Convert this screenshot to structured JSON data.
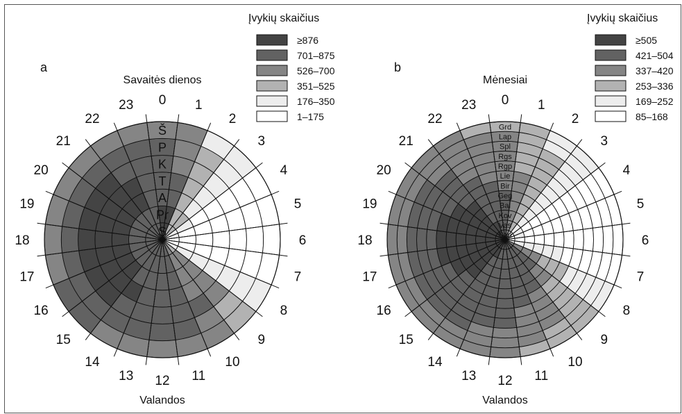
{
  "chart_data": [
    {
      "type": "heatmap",
      "panel_letter": "a",
      "title": "Savaitės dienos",
      "xlabel": "Valandos",
      "hour_labels": [
        "0",
        "1",
        "2",
        "3",
        "4",
        "5",
        "6",
        "7",
        "8",
        "9",
        "10",
        "11",
        "12",
        "13",
        "14",
        "15",
        "16",
        "17",
        "18",
        "19",
        "20",
        "21",
        "22",
        "23"
      ],
      "ring_labels": [
        "Š",
        "P",
        "K",
        "T",
        "A",
        "Pr",
        "S"
      ],
      "legend": {
        "title": "Įvykių skaičius",
        "entries": [
          "≥876",
          "701–875",
          "526–700",
          "351–525",
          "176–350",
          "1–175"
        ],
        "colors": [
          "#444444",
          "#626262",
          "#858585",
          "#b2b2b2",
          "#ededed",
          "#ffffff"
        ]
      },
      "levels": [
        [
          0,
          0,
          3,
          3,
          4,
          4,
          5,
          5,
          4,
          3,
          2,
          1,
          1,
          1,
          1,
          1,
          1,
          1,
          1,
          1,
          1,
          1,
          1,
          1
        ],
        [
          0,
          0,
          3,
          3,
          4,
          5,
          5,
          5,
          4,
          2,
          2,
          1,
          1,
          1,
          1,
          1,
          1,
          1,
          1,
          1,
          1,
          1,
          1,
          1
        ],
        [
          1,
          1,
          3,
          4,
          5,
          5,
          5,
          5,
          4,
          2,
          2,
          1,
          1,
          1,
          1,
          0,
          0,
          0,
          0,
          0,
          0,
          0,
          0,
          1
        ],
        [
          1,
          1,
          3,
          4,
          5,
          5,
          5,
          5,
          4,
          2,
          2,
          1,
          1,
          1,
          0,
          0,
          0,
          0,
          0,
          0,
          0,
          0,
          0,
          1
        ],
        [
          1,
          2,
          3,
          4,
          5,
          5,
          5,
          5,
          4,
          2,
          1,
          1,
          1,
          1,
          1,
          0,
          0,
          0,
          0,
          0,
          0,
          0,
          1,
          1
        ],
        [
          1,
          2,
          3,
          4,
          5,
          5,
          5,
          5,
          4,
          3,
          2,
          1,
          1,
          1,
          1,
          1,
          1,
          1,
          1,
          1,
          1,
          1,
          1,
          1
        ],
        [
          2,
          2,
          4,
          4,
          5,
          5,
          5,
          5,
          4,
          3,
          2,
          2,
          2,
          2,
          2,
          1,
          1,
          2,
          2,
          2,
          2,
          2,
          2,
          2
        ]
      ]
    },
    {
      "type": "heatmap",
      "panel_letter": "b",
      "title": "Mėnesiai",
      "xlabel": "Valandos",
      "hour_labels": [
        "0",
        "1",
        "2",
        "3",
        "4",
        "5",
        "6",
        "7",
        "8",
        "9",
        "10",
        "11",
        "12",
        "13",
        "14",
        "15",
        "16",
        "17",
        "18",
        "19",
        "20",
        "21",
        "22",
        "23"
      ],
      "ring_labels": [
        "Grd",
        "Lap",
        "Spl",
        "Rgs",
        "Rgp",
        "Lie",
        "Bir",
        "Geg",
        "Bal",
        "Kov",
        "Vas",
        "Sau"
      ],
      "legend": {
        "title": "Įvykių skaičius",
        "entries": [
          "≥505",
          "421–504",
          "337–420",
          "253–336",
          "169–252",
          "85–168"
        ],
        "colors": [
          "#444444",
          "#626262",
          "#858585",
          "#b2b2b2",
          "#ededed",
          "#ffffff"
        ]
      },
      "levels": [
        [
          1,
          2,
          3,
          4,
          4,
          4,
          5,
          4,
          2,
          1,
          1,
          1,
          1,
          1,
          0,
          0,
          0,
          0,
          0,
          0,
          0,
          0,
          0,
          1
        ],
        [
          1,
          2,
          3,
          4,
          4,
          4,
          5,
          4,
          2,
          1,
          1,
          1,
          1,
          1,
          0,
          0,
          0,
          0,
          0,
          0,
          0,
          0,
          0,
          1
        ],
        [
          1,
          2,
          3,
          4,
          5,
          5,
          5,
          4,
          2,
          1,
          1,
          1,
          1,
          1,
          1,
          0,
          0,
          0,
          0,
          0,
          0,
          0,
          1,
          1
        ],
        [
          1,
          2,
          3,
          4,
          5,
          5,
          5,
          4,
          2,
          1,
          1,
          1,
          1,
          1,
          1,
          0,
          0,
          0,
          0,
          0,
          0,
          0,
          1,
          1
        ],
        [
          1,
          2,
          3,
          4,
          5,
          5,
          5,
          4,
          3,
          2,
          1,
          1,
          1,
          1,
          1,
          0,
          0,
          0,
          0,
          0,
          0,
          0,
          1,
          1
        ],
        [
          2,
          2,
          3,
          4,
          5,
          5,
          5,
          4,
          3,
          2,
          1,
          1,
          1,
          1,
          1,
          1,
          0,
          0,
          0,
          0,
          0,
          1,
          1,
          1
        ],
        [
          2,
          2,
          3,
          4,
          5,
          5,
          5,
          5,
          3,
          3,
          2,
          1,
          1,
          1,
          1,
          1,
          1,
          0,
          0,
          0,
          1,
          1,
          1,
          2
        ],
        [
          2,
          3,
          3,
          4,
          5,
          5,
          5,
          5,
          4,
          3,
          2,
          2,
          1,
          1,
          1,
          1,
          1,
          1,
          1,
          1,
          1,
          1,
          2,
          2
        ],
        [
          2,
          3,
          3,
          4,
          5,
          5,
          5,
          5,
          4,
          3,
          2,
          2,
          1,
          1,
          1,
          1,
          1,
          1,
          1,
          1,
          1,
          1,
          2,
          2
        ],
        [
          2,
          3,
          3,
          4,
          5,
          5,
          5,
          5,
          4,
          3,
          2,
          2,
          2,
          2,
          1,
          1,
          1,
          1,
          1,
          1,
          1,
          2,
          2,
          2
        ],
        [
          2,
          3,
          4,
          4,
          5,
          5,
          5,
          5,
          4,
          3,
          3,
          2,
          2,
          2,
          2,
          2,
          2,
          2,
          2,
          2,
          2,
          2,
          2,
          2
        ],
        [
          3,
          3,
          4,
          4,
          5,
          5,
          5,
          5,
          4,
          3,
          3,
          3,
          2,
          2,
          2,
          2,
          2,
          2,
          2,
          2,
          2,
          2,
          2,
          3
        ]
      ]
    }
  ]
}
